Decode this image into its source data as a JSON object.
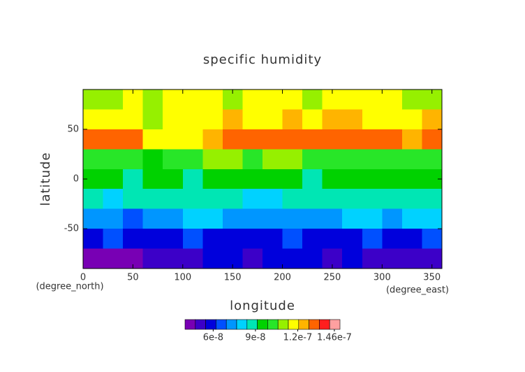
{
  "chart_data": {
    "type": "contour",
    "title": "specific humidity",
    "x_label": "longitude",
    "y_label": "latitude",
    "x_unit": "(degree_east)",
    "y_unit": "(degree_north)",
    "xlim": [
      0,
      360
    ],
    "xticks": [
      0,
      50,
      100,
      150,
      200,
      250,
      300,
      350
    ],
    "ylim": [
      -90,
      90
    ],
    "yticks": [
      -50,
      0,
      50
    ],
    "x": [
      10,
      30,
      50,
      70,
      90,
      110,
      130,
      150,
      170,
      190,
      210,
      230,
      250,
      270,
      290,
      310,
      330,
      350
    ],
    "y": [
      80,
      60,
      40,
      20,
      0,
      -20,
      -40,
      -60,
      -80
    ],
    "z": [
      [
        1.12e-07,
        1.08e-07,
        1.15e-07,
        1.12e-07,
        1.15e-07,
        1.18e-07,
        1.15e-07,
        1.12e-07,
        1.18e-07,
        1.15e-07,
        1.16e-07,
        1.12e-07,
        1.15e-07,
        1.18e-07,
        1.15e-07,
        1.16e-07,
        1.12e-07,
        1.1e-07
      ],
      [
        1.2e-07,
        1.18e-07,
        1.15e-07,
        1.12e-07,
        1.18e-07,
        1.15e-07,
        1.2e-07,
        1.22e-07,
        1.2e-07,
        1.18e-07,
        1.22e-07,
        1.2e-07,
        1.25e-07,
        1.22e-07,
        1.2e-07,
        1.18e-07,
        1.2e-07,
        1.22e-07
      ],
      [
        1.3e-07,
        1.32e-07,
        1.28e-07,
        1.2e-07,
        1.15e-07,
        1.18e-07,
        1.25e-07,
        1.3e-07,
        1.28e-07,
        1.32e-07,
        1.35e-07,
        1.3e-07,
        1.28e-07,
        1.32e-07,
        1.35e-07,
        1.3e-07,
        1.25e-07,
        1.28e-07
      ],
      [
        1.05e-07,
        1e-07,
        1.02e-07,
        9.8e-08,
        1e-07,
        1.05e-07,
        1.08e-07,
        1.1e-07,
        1.05e-07,
        1.12e-07,
        1.08e-07,
        1.05e-07,
        1.02e-07,
        1e-07,
        1.05e-07,
        1.02e-07,
        1e-07,
        1.05e-07
      ],
      [
        9.5e-08,
        9.2e-08,
        9e-08,
        9.2e-08,
        9.5e-08,
        9e-08,
        9.5e-08,
        9.8e-08,
        9.5e-08,
        9.8e-08,
        9.2e-08,
        8.8e-08,
        9.2e-08,
        9.5e-08,
        9.2e-08,
        9.5e-08,
        9.8e-08,
        9.5e-08
      ],
      [
        8.5e-08,
        8.2e-08,
        8.5e-08,
        8.8e-08,
        8.5e-08,
        8.8e-08,
        9e-08,
        8.5e-08,
        8.2e-08,
        8e-08,
        8.5e-08,
        8.8e-08,
        9e-08,
        8.5e-08,
        8.8e-08,
        8.5e-08,
        8.8e-08,
        9e-08
      ],
      [
        7.2e-08,
        7e-08,
        6.8e-08,
        7.2e-08,
        7.5e-08,
        7.8e-08,
        8e-08,
        7.5e-08,
        7.2e-08,
        7.5e-08,
        7e-08,
        7.2e-08,
        7.5e-08,
        8e-08,
        7.8e-08,
        7.5e-08,
        7.8e-08,
        8e-08
      ],
      [
        6e-08,
        6.2e-08,
        6e-08,
        5.8e-08,
        6e-08,
        6.2e-08,
        6e-08,
        6e-08,
        5.8e-08,
        6e-08,
        6.2e-08,
        6e-08,
        5.8e-08,
        6e-08,
        6.2e-08,
        6e-08,
        6e-08,
        6.2e-08
      ],
      [
        4.5e-08,
        4.2e-08,
        4.5e-08,
        4.8e-08,
        5e-08,
        5.2e-08,
        5.5e-08,
        5.5e-08,
        5.2e-08,
        5.5e-08,
        5.5e-08,
        5.5e-08,
        5e-08,
        5.5e-08,
        5.2e-08,
        5e-08,
        4.8e-08,
        5e-08
      ]
    ],
    "clim": [
      4e-08,
      1.5e-07
    ],
    "colors": [
      "#7800b4",
      "#3c00c8",
      "#0000dc",
      "#0050ff",
      "#0096ff",
      "#00d2ff",
      "#00e6b4",
      "#00d200",
      "#28e628",
      "#96f000",
      "#ffff00",
      "#ffb400",
      "#ff6400",
      "#ff1e1e",
      "#ffa0a0"
    ],
    "cticks": [
      {
        "value": 6e-08,
        "label": "6e-8"
      },
      {
        "value": 9e-08,
        "label": "9e-8"
      },
      {
        "value": 1.2e-07,
        "label": "1.2e-7"
      },
      {
        "value": 1.46e-07,
        "label": "1.46e-7"
      }
    ]
  }
}
